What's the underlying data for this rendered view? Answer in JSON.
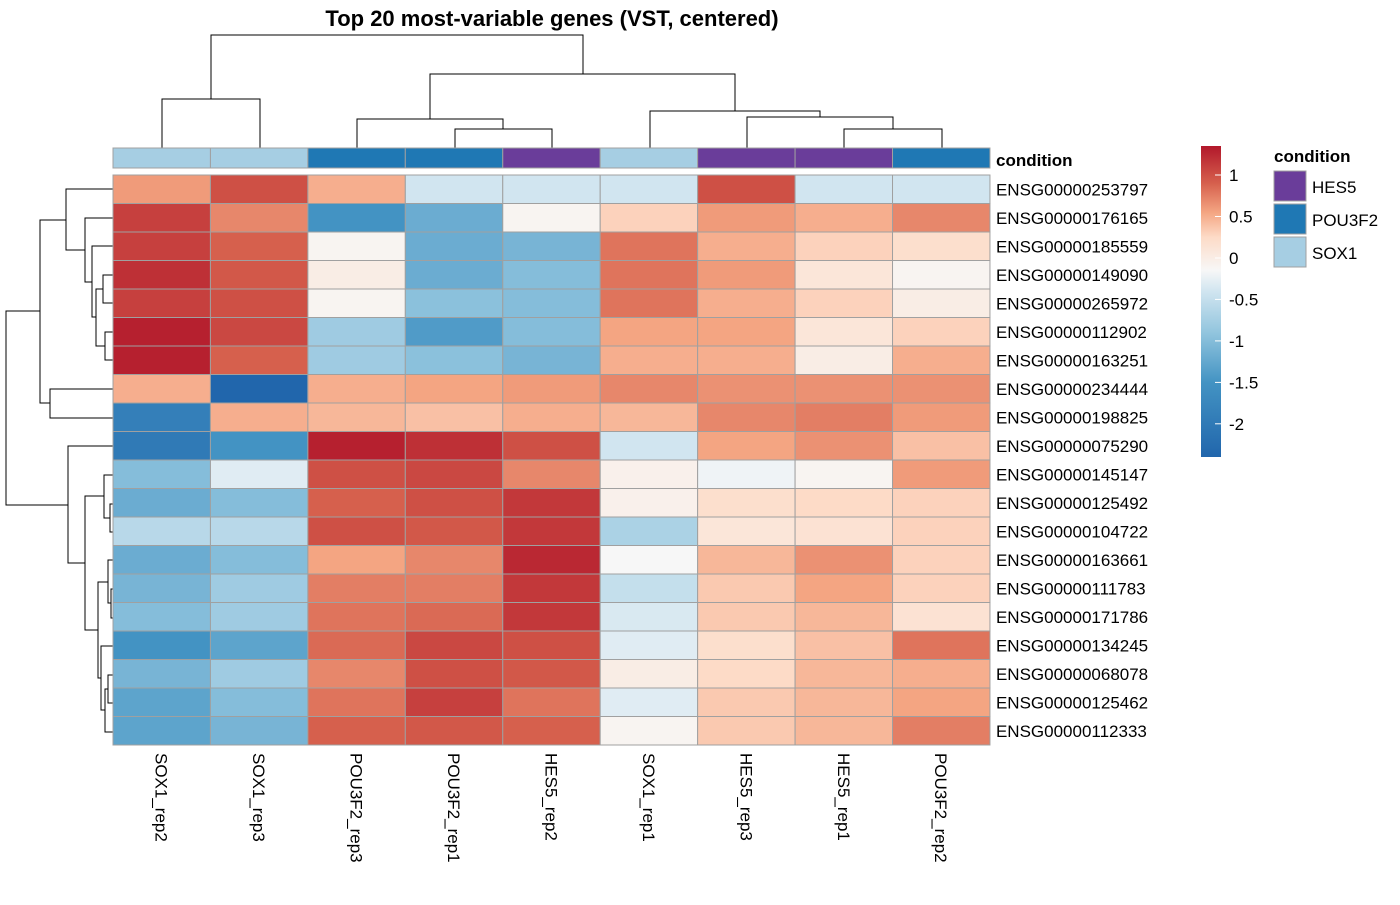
{
  "chart_data": {
    "type": "heatmap",
    "title": "Top 20 most-variable genes (VST, centered)",
    "columns": [
      "SOX1_rep2",
      "SOX1_rep3",
      "POU3F2_rep3",
      "POU3F2_rep1",
      "HES5_rep2",
      "SOX1_rep1",
      "HES5_rep3",
      "HES5_rep1",
      "POU3F2_rep2"
    ],
    "column_condition": [
      "SOX1",
      "SOX1",
      "POU3F2",
      "POU3F2",
      "HES5",
      "SOX1",
      "HES5",
      "HES5",
      "POU3F2"
    ],
    "rows": [
      "ENSG00000253797",
      "ENSG00000176165",
      "ENSG00000185559",
      "ENSG00000149090",
      "ENSG00000265972",
      "ENSG00000112902",
      "ENSG00000163251",
      "ENSG00000234444",
      "ENSG00000198825",
      "ENSG00000075290",
      "ENSG00000145147",
      "ENSG00000125492",
      "ENSG00000104722",
      "ENSG00000163661",
      "ENSG00000111783",
      "ENSG00000171786",
      "ENSG00000134245",
      "ENSG00000068078",
      "ENSG00000125462",
      "ENSG00000112333"
    ],
    "values": [
      [
        0.6,
        1.0,
        0.5,
        -0.4,
        -0.4,
        -0.4,
        1.0,
        -0.4,
        -0.4
      ],
      [
        1.1,
        0.7,
        -1.5,
        -1.2,
        -0.1,
        0.3,
        0.6,
        0.5,
        0.7
      ],
      [
        1.1,
        0.9,
        -0.1,
        -1.2,
        -1.1,
        0.8,
        0.5,
        0.3,
        0.2
      ],
      [
        1.2,
        0.95,
        0.0,
        -1.2,
        -1.0,
        0.8,
        0.6,
        0.1,
        -0.1
      ],
      [
        1.1,
        1.0,
        -0.1,
        -0.95,
        -1.0,
        0.8,
        0.5,
        0.3,
        0.0
      ],
      [
        1.3,
        1.05,
        -0.8,
        -1.4,
        -1.0,
        0.55,
        0.55,
        0.1,
        0.3
      ],
      [
        1.3,
        0.9,
        -0.8,
        -0.95,
        -1.1,
        0.5,
        0.5,
        0.0,
        0.5
      ],
      [
        0.5,
        -2.4,
        0.5,
        0.55,
        0.6,
        0.7,
        0.65,
        0.65,
        0.65
      ],
      [
        -1.9,
        0.5,
        0.45,
        0.4,
        0.5,
        0.45,
        0.7,
        0.75,
        0.6
      ],
      [
        -2.0,
        -1.5,
        1.3,
        1.2,
        1.0,
        -0.4,
        0.55,
        0.65,
        0.4
      ],
      [
        -1.0,
        -0.3,
        1.0,
        1.05,
        0.7,
        -0.05,
        -0.2,
        -0.1,
        0.6
      ],
      [
        -1.2,
        -1.0,
        0.9,
        1.0,
        1.15,
        -0.05,
        0.2,
        0.25,
        0.3
      ],
      [
        -0.6,
        -0.6,
        1.0,
        0.95,
        1.15,
        -0.7,
        0.1,
        0.15,
        0.3
      ],
      [
        -1.2,
        -1.0,
        0.55,
        0.7,
        1.25,
        -0.15,
        0.45,
        0.65,
        0.3
      ],
      [
        -1.1,
        -0.8,
        0.75,
        0.75,
        1.15,
        -0.5,
        0.35,
        0.55,
        0.3
      ],
      [
        -1.0,
        -0.8,
        0.8,
        0.85,
        1.15,
        -0.35,
        0.35,
        0.45,
        0.15
      ],
      [
        -1.5,
        -1.3,
        0.85,
        1.05,
        1.0,
        -0.3,
        0.2,
        0.4,
        0.8
      ],
      [
        -1.1,
        -0.8,
        0.7,
        1.0,
        0.95,
        0.0,
        0.25,
        0.45,
        0.5
      ],
      [
        -1.3,
        -1.0,
        0.8,
        1.1,
        0.8,
        -0.3,
        0.35,
        0.45,
        0.55
      ],
      [
        -1.3,
        -1.1,
        0.9,
        0.95,
        0.9,
        -0.1,
        0.35,
        0.45,
        0.75
      ]
    ],
    "color_scale": {
      "min": -2.4,
      "max": 1.35,
      "stops": [
        {
          "value": -2.4,
          "color": "#2166ac"
        },
        {
          "value": -1.5,
          "color": "#4393c3"
        },
        {
          "value": -0.9,
          "color": "#92c5de"
        },
        {
          "value": -0.4,
          "color": "#d1e5f0"
        },
        {
          "value": -0.15,
          "color": "#f7f7f7"
        },
        {
          "value": 0.25,
          "color": "#fddbc7"
        },
        {
          "value": 0.55,
          "color": "#f4a582"
        },
        {
          "value": 0.9,
          "color": "#d6604d"
        },
        {
          "value": 1.35,
          "color": "#b2182b"
        }
      ],
      "ticks": [
        1,
        0.5,
        0,
        -0.5,
        -1,
        -1.5,
        -2
      ],
      "tick_labels": [
        "1",
        "0.5",
        "0",
        "-0.5",
        "-1",
        "-1.5",
        "-2"
      ]
    },
    "annotation": {
      "title": "condition",
      "legend_title": "condition",
      "levels": [
        "HES5",
        "POU3F2",
        "SOX1"
      ],
      "colors": {
        "HES5": "#6a3d9a",
        "POU3F2": "#1f78b4",
        "SOX1": "#a6cee3"
      }
    },
    "grid": true,
    "cell_border_color": "#a0a0a0"
  }
}
